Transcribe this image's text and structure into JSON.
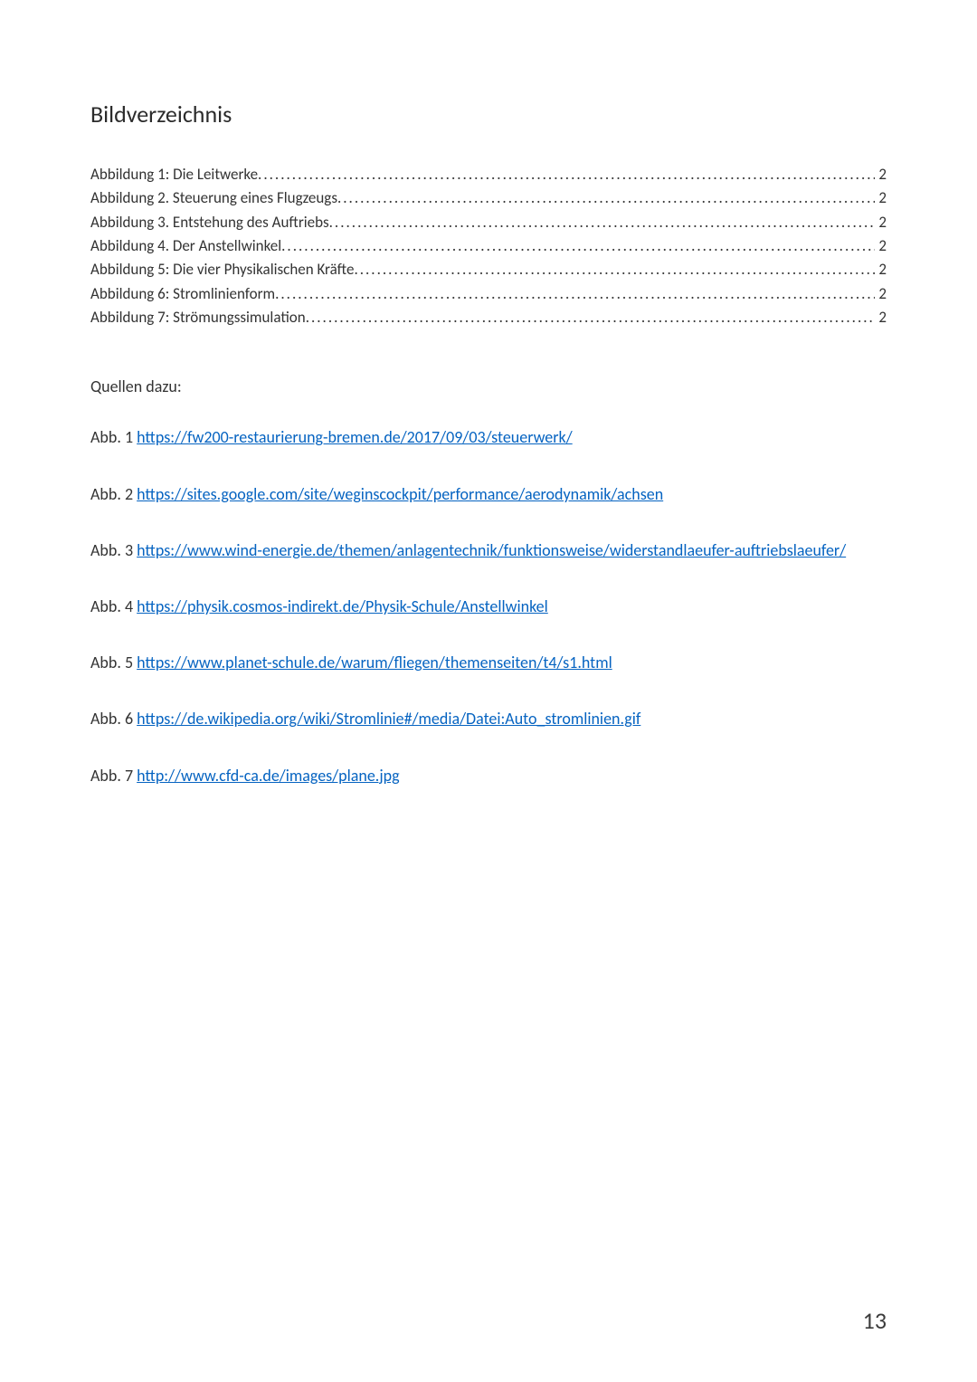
{
  "heading": "Bildverzeichnis",
  "toc": [
    {
      "label": "Abbildung 1: Die Leitwerke ",
      "page": " 2"
    },
    {
      "label": "Abbildung 2. Steuerung eines Flugzeugs ",
      "page": " 2"
    },
    {
      "label": "Abbildung 3. Entstehung des Auftriebs ",
      "page": " 2"
    },
    {
      "label": "Abbildung 4. Der Anstellwinkel ",
      "page": " 2"
    },
    {
      "label": "Abbildung 5: Die vier Physikalischen Kräfte ",
      "page": " 2"
    },
    {
      "label": "Abbildung 6: Stromlinienform ",
      "page": " 2"
    },
    {
      "label": "Abbildung 7: Strömungssimulation ",
      "page": " 2"
    }
  ],
  "sources_title": "Quellen dazu:",
  "sources": [
    {
      "prefix": "Abb. 1 ",
      "url": "https://fw200-restaurierung-bremen.de/2017/09/03/steuerwerk/"
    },
    {
      "prefix": "Abb. 2 ",
      "url": "https://sites.google.com/site/weginscockpit/performance/aerodynamik/achsen"
    },
    {
      "prefix": "Abb. 3 ",
      "url": "https://www.wind-energie.de/themen/anlagentechnik/funktionsweise/widerstandlaeufer-auftriebslaeufer/"
    },
    {
      "prefix": "Abb. 4 ",
      "url": "https://physik.cosmos-indirekt.de/Physik-Schule/Anstellwinkel"
    },
    {
      "prefix": "Abb. 5 ",
      "url": "https://www.planet-schule.de/warum/fliegen/themenseiten/t4/s1.html"
    },
    {
      "prefix": "Abb. 6 ",
      "url": "https://de.wikipedia.org/wiki/Stromlinie#/media/Datei:Auto_stromlinien.gif"
    },
    {
      "prefix": "Abb. 7 ",
      "url": "http://www.cfd-ca.de/images/plane.jpg"
    }
  ],
  "page_number": "13",
  "colors": {
    "text": "#333333",
    "link": "#0563c1",
    "background": "#ffffff"
  },
  "typography": {
    "heading_fontsize": 26,
    "body_fontsize": 18,
    "toc_fontsize": 17,
    "page_number_fontsize": 26,
    "font_family": "Calibri"
  }
}
